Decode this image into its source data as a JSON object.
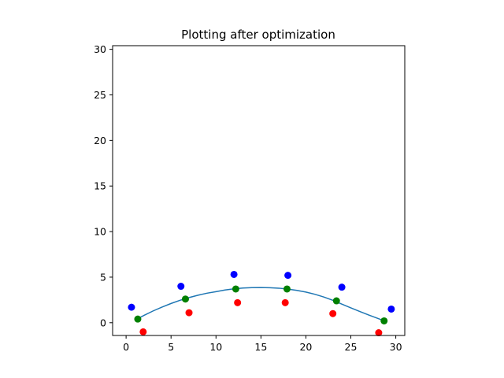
{
  "chart_data": {
    "type": "scatter",
    "title": "Plotting after optimization",
    "xlabel": "",
    "ylabel": "",
    "xlim": [
      -1.5,
      31
    ],
    "ylim": [
      -1.4,
      30.4
    ],
    "x_ticks": [
      0,
      5,
      10,
      15,
      20,
      25,
      30
    ],
    "y_ticks": [
      0,
      5,
      10,
      15,
      20,
      25,
      30
    ],
    "grid": false,
    "series": [
      {
        "kind": "scatter",
        "color": "#0000ff",
        "points": [
          [
            0.6,
            1.7
          ],
          [
            6.1,
            4.0
          ],
          [
            12.0,
            5.3
          ],
          [
            18.0,
            5.2
          ],
          [
            24.0,
            3.9
          ],
          [
            29.5,
            1.5
          ]
        ]
      },
      {
        "kind": "scatter",
        "color": "#ff0000",
        "points": [
          [
            1.9,
            -1.0
          ],
          [
            7.0,
            1.1
          ],
          [
            12.4,
            2.2
          ],
          [
            17.7,
            2.2
          ],
          [
            23.0,
            1.0
          ],
          [
            28.1,
            -1.1
          ]
        ]
      },
      {
        "kind": "scatter",
        "color": "#008000",
        "points": [
          [
            1.3,
            0.4
          ],
          [
            6.6,
            2.6
          ],
          [
            12.2,
            3.7
          ],
          [
            17.9,
            3.7
          ],
          [
            23.4,
            2.4
          ],
          [
            28.7,
            0.2
          ]
        ]
      },
      {
        "kind": "line",
        "color": "#1f77b4",
        "x": [
          1.0,
          2.0,
          3.0,
          4.0,
          5.0,
          6.0,
          7.0,
          8.0,
          9.0,
          10.0,
          11.0,
          12.0,
          13.0,
          14.0,
          15.0,
          16.0,
          17.0,
          18.0,
          19.0,
          20.0,
          21.0,
          22.0,
          23.0,
          24.0,
          25.0,
          26.0,
          27.0,
          28.0,
          29.0
        ],
        "y": [
          0.29,
          0.81,
          1.29,
          1.72,
          2.11,
          2.46,
          2.76,
          3.02,
          3.24,
          3.41,
          3.59,
          3.72,
          3.81,
          3.85,
          3.86,
          3.84,
          3.79,
          3.69,
          3.55,
          3.36,
          3.12,
          2.82,
          2.46,
          2.04,
          1.63,
          1.23,
          0.84,
          0.47,
          0.1
        ]
      }
    ]
  }
}
